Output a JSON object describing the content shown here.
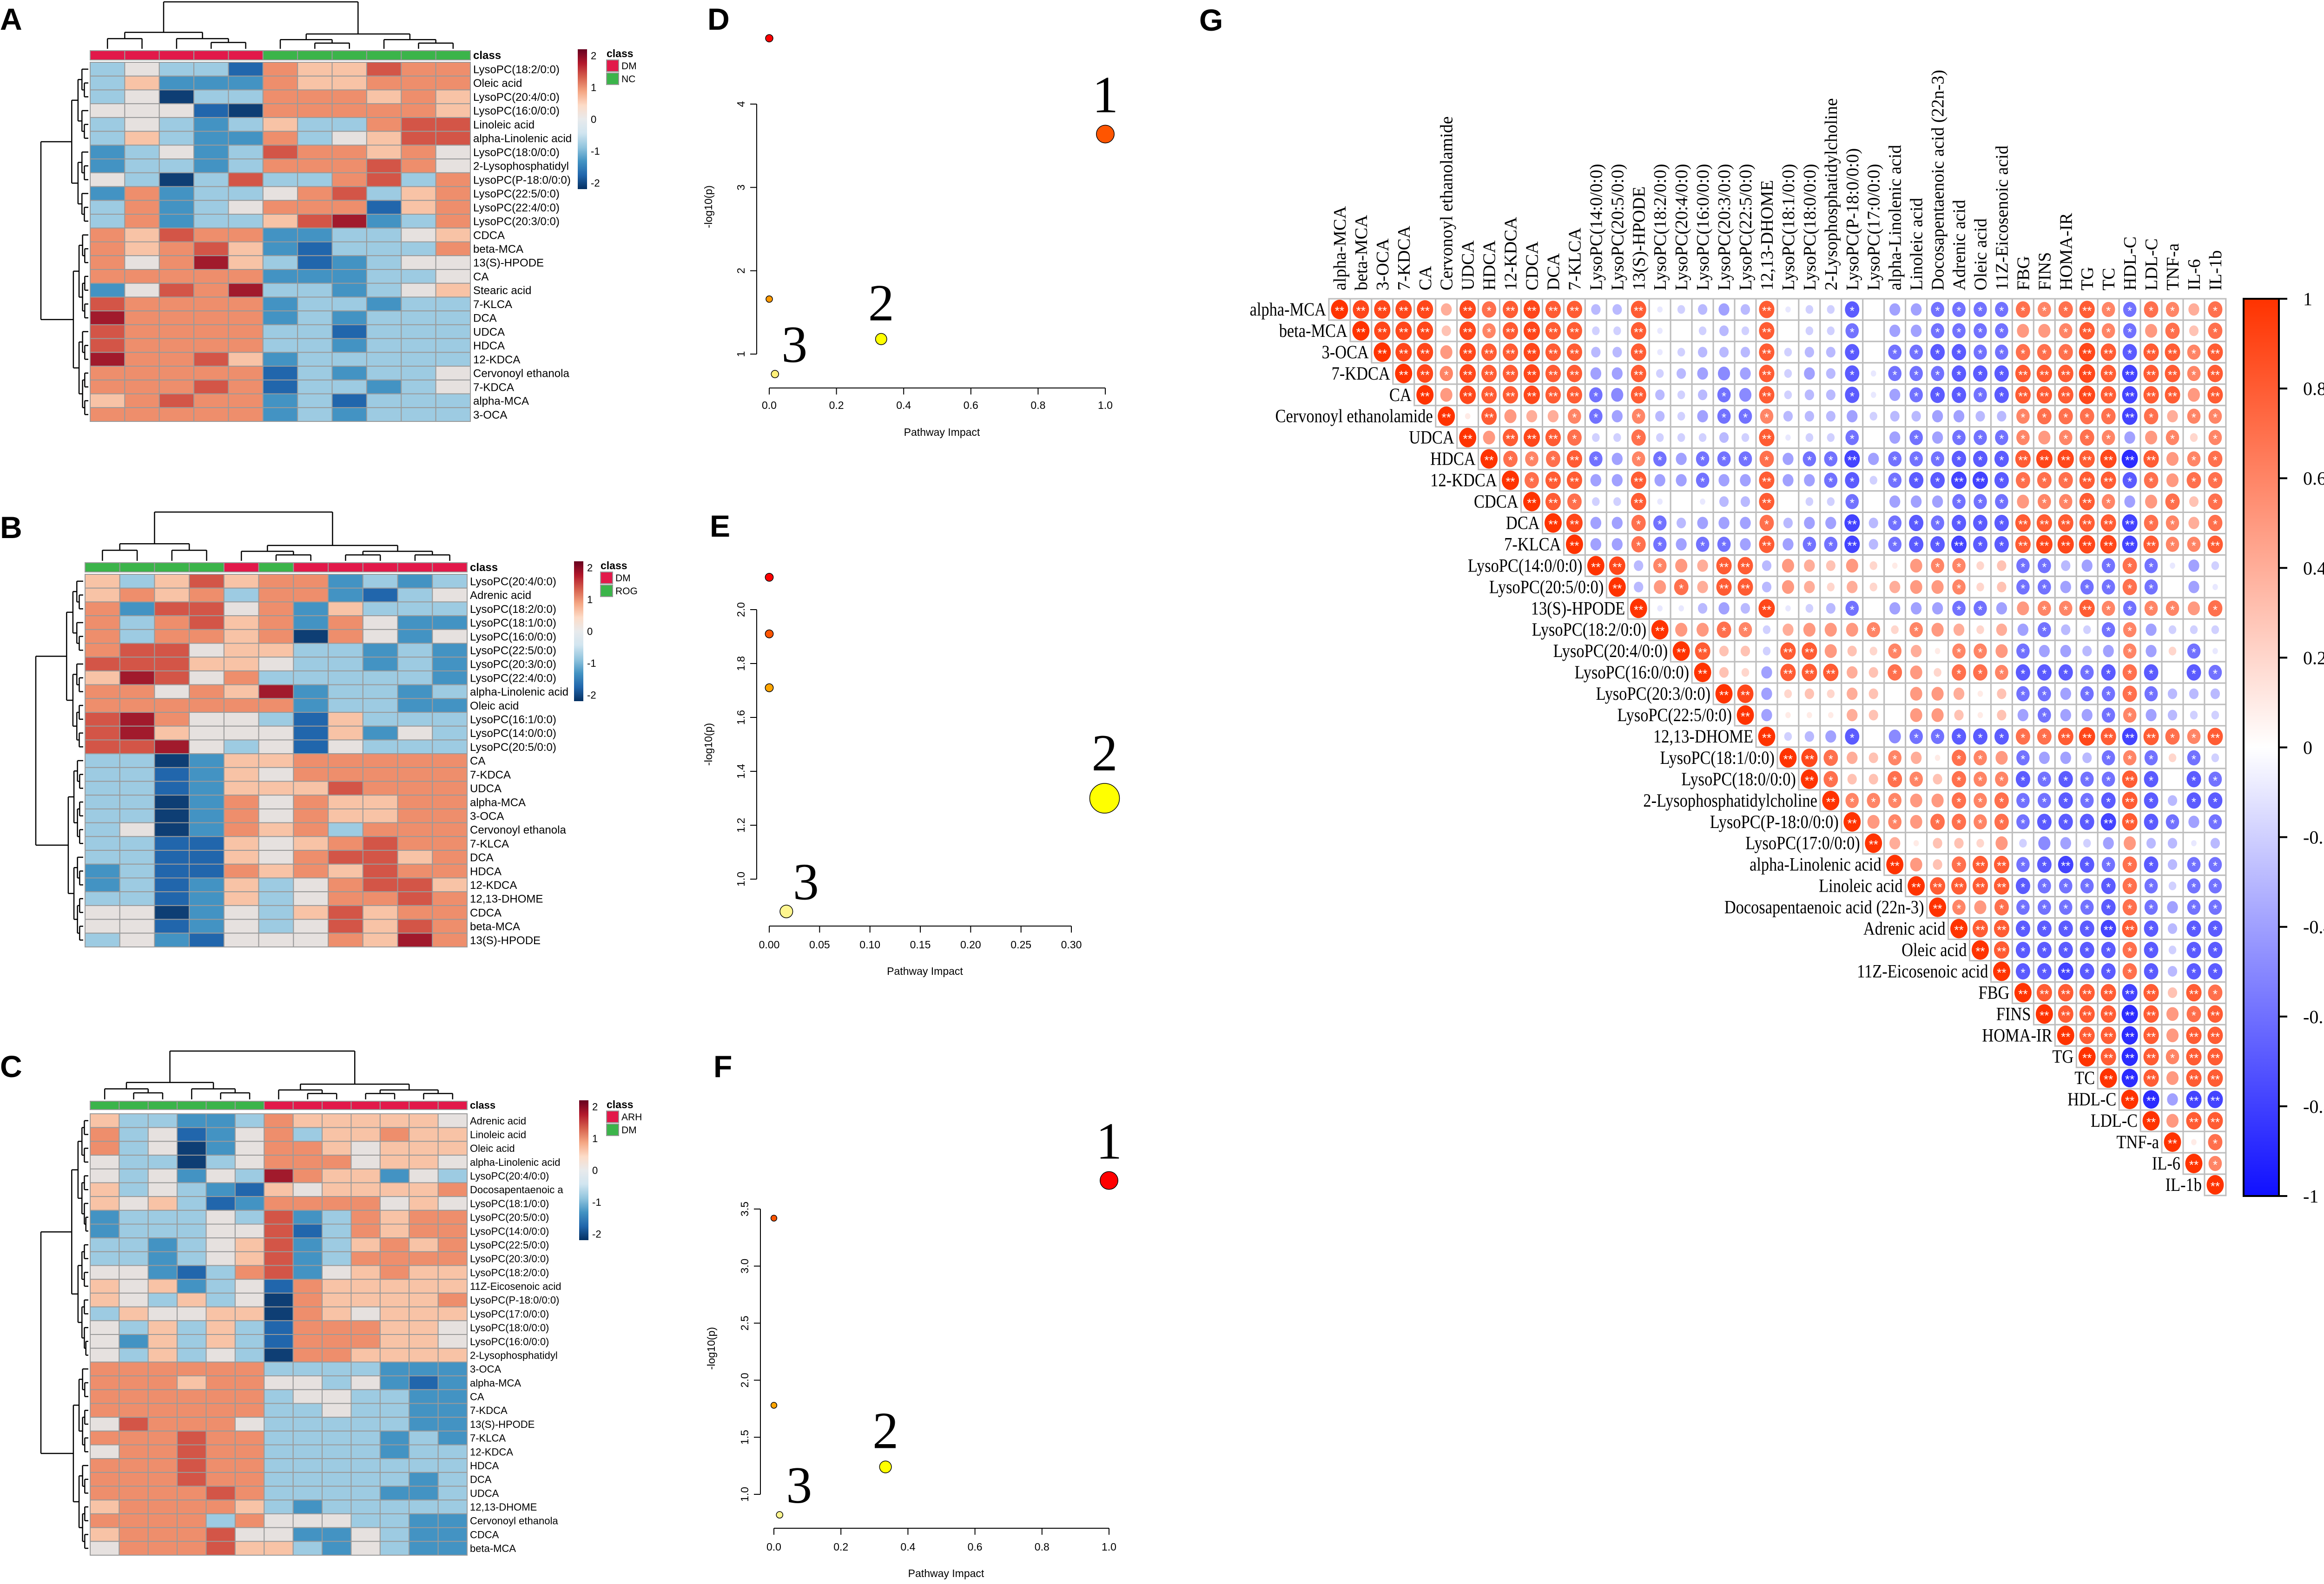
{
  "panel_labels": [
    "A",
    "B",
    "C",
    "D",
    "E",
    "F",
    "G"
  ],
  "heatmaps": [
    {
      "panel": "A",
      "class_bar_label": "class",
      "legend_title": "class",
      "legend": [
        {
          "label": "DM",
          "color": "#E2194A"
        },
        {
          "label": "NC",
          "color": "#3BB44A"
        }
      ],
      "columns_class": [
        "DM",
        "DM",
        "DM",
        "DM",
        "DM",
        "NC",
        "NC",
        "NC",
        "NC",
        "NC",
        "NC"
      ],
      "colorbar_ticks": [
        "2",
        "1",
        "0",
        "-1",
        "-2"
      ],
      "z_code_note": "digit d => z = (d-4)/2",
      "rows": [
        {
          "name": "LysoPC(18:2/0:0)",
          "z": "34331655766"
        },
        {
          "name": "Oleic acid",
          "z": "35222655666"
        },
        {
          "name": "LysoPC(20:4/0:0)",
          "z": "34033666565"
        },
        {
          "name": "LysoPC(16:0/0:0)",
          "z": "44410666665"
        },
        {
          "name": "Linoleic acid",
          "z": "34323533677"
        },
        {
          "name": "alpha-Linolenic acid",
          "z": "35322634577"
        },
        {
          "name": "LysoPC(18:0/0:0)",
          "z": "23423766564"
        },
        {
          "name": "2-Lysophosphatidyl",
          "z": "23323666764"
        },
        {
          "name": "LysoPC(P-18:0/0:0)",
          "z": "43037336736"
        },
        {
          "name": "LysoPC(22:5/0:0)",
          "z": "26233467356"
        },
        {
          "name": "LysoPC(22:4/0:0)",
          "z": "36234666156"
        },
        {
          "name": "LysoPC(20:3/0:0)",
          "z": "36233578236"
        },
        {
          "name": "CDCA",
          "z": "65766223345"
        },
        {
          "name": "beta-MCA",
          "z": "65675213336"
        },
        {
          "name": "13(S)-HPODE",
          "z": "64685312344"
        },
        {
          "name": "CA",
          "z": "66666222334"
        },
        {
          "name": "Stearic acid",
          "z": "24768332345"
        },
        {
          "name": "7-KLCA",
          "z": "76666233233"
        },
        {
          "name": "DCA",
          "z": "86666232333"
        },
        {
          "name": "UDCA",
          "z": "76666331333"
        },
        {
          "name": "HDCA",
          "z": "76666332333"
        },
        {
          "name": "12-KDCA",
          "z": "86675233333"
        },
        {
          "name": "Cervonoyl ethanola",
          "z": "66666132334"
        },
        {
          "name": "7-KDCA",
          "z": "66676133234"
        },
        {
          "name": "alpha-MCA",
          "z": "56766231333"
        },
        {
          "name": "3-OCA",
          "z": "66666232333"
        }
      ]
    },
    {
      "panel": "B",
      "class_bar_label": "class",
      "legend_title": "class",
      "legend": [
        {
          "label": "DM",
          "color": "#E2194A"
        },
        {
          "label": "ROG",
          "color": "#3BB44A"
        }
      ],
      "columns_class": [
        "ROG",
        "ROG",
        "ROG",
        "ROG",
        "DM",
        "ROG",
        "DM",
        "DM",
        "DM",
        "DM",
        "DM"
      ],
      "colorbar_ticks": [
        "2",
        "1",
        "0",
        "-1",
        "-2"
      ],
      "rows": [
        {
          "name": "LysoPC(20:4/0:0)",
          "z": "53575662323"
        },
        {
          "name": "Adrenic acid",
          "z": "56563662134"
        },
        {
          "name": "LysoPC(18:2/0:0)",
          "z": "62774625333"
        },
        {
          "name": "LysoPC(18:1/0:0)",
          "z": "63675626422"
        },
        {
          "name": "LysoPC(16:0/0:0)",
          "z": "63665606424"
        },
        {
          "name": "LysoPC(22:5/0:0)",
          "z": "67745533232"
        },
        {
          "name": "LysoPC(20:3/0:0)",
          "z": "77755433232"
        },
        {
          "name": "LysoPC(22:4/0:0)",
          "z": "58746333332"
        },
        {
          "name": "alpha-Linolenic acid",
          "z": "66465823323"
        },
        {
          "name": "Oleic acid",
          "z": "66666623322"
        },
        {
          "name": "LysoPC(16:1/0:0)",
          "z": "78644315333"
        },
        {
          "name": "LysoPC(14:0/0:0)",
          "z": "78544415243"
        },
        {
          "name": "LysoPC(20:5/0:0)",
          "z": "77843414333"
        },
        {
          "name": "CA",
          "z": "33025566666"
        },
        {
          "name": "7-KDCA",
          "z": "33125466666"
        },
        {
          "name": "UDCA",
          "z": "33125557666"
        },
        {
          "name": "alpha-MCA",
          "z": "33026465566"
        },
        {
          "name": "3-OCA",
          "z": "33026465566"
        },
        {
          "name": "Cervonoyl ethanola",
          "z": "34026563666"
        },
        {
          "name": "7-KLCA",
          "z": "33115456766"
        },
        {
          "name": "DCA",
          "z": "33115467756"
        },
        {
          "name": "HDCA",
          "z": "23116565766"
        },
        {
          "name": "12-KDCA",
          "z": "23125346775"
        },
        {
          "name": "12,13-DHOME",
          "z": "33125346676"
        },
        {
          "name": "CDCA",
          "z": "44024357566"
        },
        {
          "name": "beta-MCA",
          "z": "44124347576"
        },
        {
          "name": "13(S)-HPODE",
          "z": "34214446586"
        }
      ]
    },
    {
      "panel": "C",
      "class_bar_label": "class",
      "legend_title": "class",
      "legend": [
        {
          "label": "ARH",
          "color": "#E2194A"
        },
        {
          "label": "DM",
          "color": "#3BB44A"
        }
      ],
      "columns_class": [
        "DM",
        "DM",
        "DM",
        "DM",
        "DM",
        "DM",
        "ARH",
        "ARH",
        "ARH",
        "ARH",
        "ARH",
        "ARH",
        "ARH"
      ],
      "colorbar_ticks": [
        "2",
        "1",
        "0",
        "-1",
        "-2"
      ],
      "rows": [
        {
          "name": "Adrenic acid",
          "z": "5332236555554"
        },
        {
          "name": "Linoleic acid",
          "z": "6341246355655"
        },
        {
          "name": "Oleic acid",
          "z": "6340246654555"
        },
        {
          "name": "alpha-Linolenic acid",
          "z": "4330346664554"
        },
        {
          "name": "LysoPC(20:4/0:0)",
          "z": "4342438655243"
        },
        {
          "name": "Docosapentaenoic a",
          "z": "5343215455556"
        },
        {
          "name": "LysoPC(18:1/0:0)",
          "z": "5453126666454"
        },
        {
          "name": "LysoPC(20:5/0:0)",
          "z": "2333437236566"
        },
        {
          "name": "LysoPC(14:0/0:0)",
          "z": "2333447136566"
        },
        {
          "name": "LysoPC(22:5/0:0)",
          "z": "3323457235656"
        },
        {
          "name": "LysoPC(20:3/0:0)",
          "z": "3323457236666"
        },
        {
          "name": "LysoPC(18:2/0:0)",
          "z": "4421367245655"
        },
        {
          "name": "11Z-Eicosenoic acid",
          "z": "5452341655555"
        },
        {
          "name": "LysoPC(P-18:0/0:0)",
          "z": "5435340655556"
        },
        {
          "name": "LysoPC(17:0/0:0)",
          "z": "3544550654555"
        },
        {
          "name": "LysoPC(18:0/0:0)",
          "z": "4353531666554"
        },
        {
          "name": "LysoPC(16:0/0:0)",
          "z": "4253531666554"
        },
        {
          "name": "2-Lysophosphatidyl",
          "z": "4353430665555"
        },
        {
          "name": "3-OCA",
          "z": "6666663333222"
        },
        {
          "name": "alpha-MCA",
          "z": "6665664434212"
        },
        {
          "name": "CA",
          "z": "6666663443322"
        },
        {
          "name": "7-KDCA",
          "z": "6666663343322"
        },
        {
          "name": "13(S)-HPODE",
          "z": "4766643333322"
        },
        {
          "name": "7-KLCA",
          "z": "6667663333232"
        },
        {
          "name": "12-KDCA",
          "z": "4667663333233"
        },
        {
          "name": "HDCA",
          "z": "6667663333333"
        },
        {
          "name": "DCA",
          "z": "6667663333323"
        },
        {
          "name": "UDCA",
          "z": "6666763333223"
        },
        {
          "name": "12,13-DHOME",
          "z": "5666653233333"
        },
        {
          "name": "Cervonoyl ethanola",
          "z": "6666364443322"
        },
        {
          "name": "CDCA",
          "z": "5666744224322"
        },
        {
          "name": "beta-MCA",
          "z": "4666755324322"
        }
      ]
    }
  ],
  "chart_data": [
    {
      "panel": "D",
      "type": "scatter",
      "xlabel": "Pathway Impact",
      "ylabel": "-log10(p)",
      "xticks": [
        "0.0",
        "0.2",
        "0.4",
        "0.6",
        "0.8",
        "1.0"
      ],
      "xtick_values": [
        0,
        0.2,
        0.4,
        0.6,
        0.8,
        1.0
      ],
      "yticks": [
        "1",
        "2",
        "3",
        "4"
      ],
      "ytick_values": [
        1,
        2,
        3,
        4
      ],
      "points": [
        {
          "x": 0.0,
          "y": 4.79,
          "color": "#FF0000",
          "size": 0.25
        },
        {
          "x": 1.0,
          "y": 3.64,
          "color": "#FF5500",
          "size": 0.6,
          "label": "1"
        },
        {
          "x": 0.0,
          "y": 1.66,
          "color": "#FF9A00",
          "size": 0.22
        },
        {
          "x": 0.333,
          "y": 1.18,
          "color": "#FFFF00",
          "size": 0.38,
          "label": "2"
        },
        {
          "x": 0.017,
          "y": 0.76,
          "color": "#FFF07A",
          "size": 0.25,
          "label": "3"
        }
      ]
    },
    {
      "panel": "E",
      "type": "scatter",
      "xlabel": "Pathway Impact",
      "ylabel": "-log10(p)",
      "xticks": [
        "0.00",
        "0.05",
        "0.10",
        "0.15",
        "0.20",
        "0.25",
        "0.30"
      ],
      "xtick_values": [
        0,
        0.05,
        0.1,
        0.15,
        0.2,
        0.25,
        0.3
      ],
      "yticks": [
        "1.0",
        "1.2",
        "1.4",
        "1.6",
        "1.8",
        "2.0"
      ],
      "ytick_values": [
        1.0,
        1.2,
        1.4,
        1.6,
        1.8,
        2.0
      ],
      "points": [
        {
          "x": 0.0,
          "y": 2.12,
          "color": "#FF0000",
          "size": 0.27
        },
        {
          "x": 0.0,
          "y": 1.91,
          "color": "#FF5500",
          "size": 0.27
        },
        {
          "x": 0.0,
          "y": 1.71,
          "color": "#FFA500",
          "size": 0.27
        },
        {
          "x": 0.333,
          "y": 1.3,
          "color": "#FFFF00",
          "size": 1.0,
          "label": "2"
        },
        {
          "x": 0.017,
          "y": 0.88,
          "color": "#FFF68F",
          "size": 0.43,
          "label": "3"
        }
      ]
    },
    {
      "panel": "F",
      "type": "scatter",
      "xlabel": "Pathway Impact",
      "ylabel": "-log10(p)",
      "xticks": [
        "0.0",
        "0.2",
        "0.4",
        "0.6",
        "0.8",
        "1.0"
      ],
      "xtick_values": [
        0,
        0.2,
        0.4,
        0.6,
        0.8,
        1.0
      ],
      "yticks": [
        "1.0",
        "1.5",
        "2.0",
        "2.5",
        "3.0",
        "3.5"
      ],
      "ytick_values": [
        1.0,
        1.5,
        2.0,
        2.5,
        3.0,
        3.5
      ],
      "points": [
        {
          "x": 1.0,
          "y": 3.75,
          "color": "#FF0000",
          "size": 0.6,
          "label": "1"
        },
        {
          "x": 0.0,
          "y": 3.42,
          "color": "#FF5500",
          "size": 0.2
        },
        {
          "x": 0.0,
          "y": 1.78,
          "color": "#FFA500",
          "size": 0.2
        },
        {
          "x": 0.333,
          "y": 1.24,
          "color": "#FFFF00",
          "size": 0.4,
          "label": "2"
        },
        {
          "x": 0.017,
          "y": 0.82,
          "color": "#FFF68F",
          "size": 0.22,
          "label": "3"
        }
      ]
    },
    {
      "panel": "G",
      "type": "heatmap",
      "subtype": "correlation upper triangle",
      "code_note": "X=1, 1-9 => +0.1..+0.9, 0 => 0, a-i => -0.1..-0.9; ** |r|>=0.75, * |r|>=0.55",
      "variables": [
        "alpha-MCA",
        "beta-MCA",
        "3-OCA",
        "7-KDCA",
        "CA",
        "Cervonoyl ethanolamide",
        "UDCA",
        "HDCA",
        "12-KDCA",
        "CDCA",
        "DCA",
        "7-KLCA",
        "LysoPC(14:0/0:0)",
        "LysoPC(20:5/0:0)",
        "13(S)-HPODE",
        "LysoPC(18:2/0:0)",
        "LysoPC(20:4/0:0)",
        "LysoPC(16:0/0:0)",
        "LysoPC(20:3/0:0)",
        "LysoPC(22:5/0:0)",
        "12,13-DHOME",
        "LysoPC(18:1/0:0)",
        "LysoPC(18:0/0:0)",
        "2-Lysophosphatidylcholine",
        "LysoPC(P-18:0/0:0)",
        "LysoPC(17:0/0:0)",
        "alpha-Linolenic acid",
        "Linoleic acid",
        "Docosapentaenoic acid (22n-3)",
        "Adrenic acid",
        "Oleic acid",
        "11Z-Eicosenoic acid",
        "FBG",
        "FINS",
        "HOMA-IR",
        "TG",
        "TC",
        "HDL-C",
        "LDL-C",
        "TNF-a",
        "IL-6",
        "IL-1b"
      ],
      "rows": [
        "X99994978988cc8abcdc8abbg0ddffff76786f7647",
        "X9993968988bb8a0bcb80bbf0ddffff55686f5737",
        "X995988988cc8abccc8bccg0ffggff77798g8868",
        "X96988988dd8bcded8bdcgafffggg88898h8868",
        "X5988988fe8cbcfe8bccgadfggfg88898h8858",
        "X185446fd6cbdff6cccdbccddcc67777h7466",
        "X58987bb7bbbcb8abbf0dfdfff65676d5626",
        "X7678fd6fdfff7dffhdfffggg89989i8567",
        "X788dd8ddfdd8ddfgbfgghhg77788g7577",
        "X87bb8a0acc80bbf0dddfff56686d5737",
        "X9dd7fcddd7cddhcfgfggg88888h7647",
        "Xdd7fdffd8dffhcfgghgg89999h8668",
        "X9c65488c54352156623ffcdf7fadb",
        "Xc57488c54242455623ffdff7f0da",
        "Xaacdc9abcf0dddffd56686f6657",
        "X5576b45556265424dfcbf6dbbb",
        "X833b88532641665fddcd6d2fa",
        "X32d88843752776gggfg7g0gf",
        "X9d23243055413ffdff7fccc",
        "Xd11143055313dfddf6dcbb",
        "Xbcdg0effggg77898h8768",
        "X9743641765fddcf6f2fb",
        "X733763766gfgff8g0gf",
        "X66655767ffgfg8gcgg",
        "X5657767fgggh8gfdf",
        "X413325bedbd5ccac",
        "X53788fghgf7gcff",
        "X8888gfffg7fbff",
        "X657ffffg7fdff",
        "X88ggggh8gcgg",
        "X8ggggg7gbgg",
        "Xgghgg7gcgg",
        "X8888h8387",
        "X888i8578",
        "X88i8588",
        "X8i8688",
        "Xi8588",
        "Xidhh",
        "X588",
        "X17",
        "X6",
        "X"
      ],
      "colorbar_ticks": [
        "1",
        "0.8",
        "0.6",
        "0.4",
        "0.2",
        "0",
        "-0.2",
        "-0.4",
        "-0.6",
        "-0.8",
        "-1"
      ],
      "colorbar_tick_values": [
        1,
        0.8,
        0.6,
        0.4,
        0.2,
        0,
        -0.2,
        -0.4,
        -0.6,
        -0.8,
        -1
      ],
      "colors": {
        "positive": "#FF3300",
        "negative": "#1414FF"
      }
    }
  ]
}
